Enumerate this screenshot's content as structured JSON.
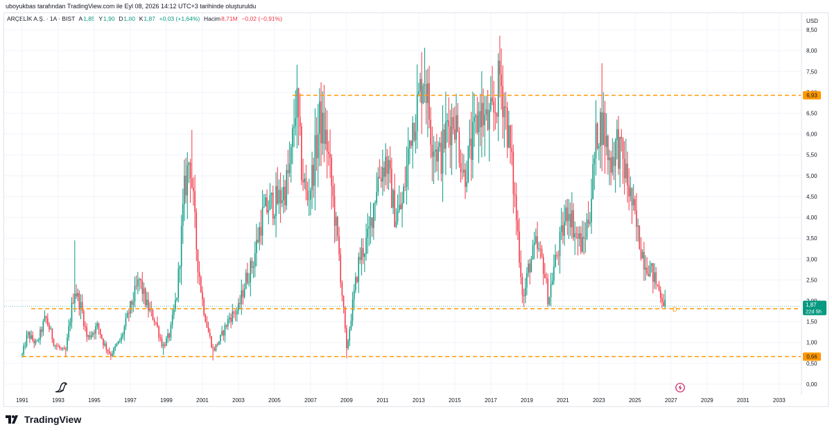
{
  "attribution": "uboyukbas tarafından TradingView.com ile Eyl 08, 2026 14:12 UTC+3 tarihinde oluşturuldu",
  "legend": {
    "symbol": "ARÇELİK A.Ş. · 1A · BIST",
    "open_label": "A",
    "open": "1,85",
    "high_label": "Y",
    "high": "1,90",
    "low_label": "D",
    "low": "1,80",
    "close_label": "K",
    "close": "1,87",
    "change": "+0,03 (+1,64%)",
    "volume_label": "Hacim",
    "volume": "8,71M",
    "volume_change": "−0,02 (−0,91%)"
  },
  "currency": "USD",
  "brand": "TradingView",
  "colors": {
    "up": "#089981",
    "down": "#f23645",
    "level": "#ff9800",
    "price_tag": "#089981",
    "grid": "#f0f3fa"
  },
  "chart_data": {
    "type": "candlestick",
    "symbol": "ARÇELİK A.Ş.",
    "interval": "1A",
    "exchange": "BIST",
    "currency": "USD",
    "x_range": [
      1990.0,
      2034.2
    ],
    "y_range": [
      -0.25,
      8.9
    ],
    "x_ticks": [
      "1991",
      "1993",
      "1995",
      "1997",
      "1999",
      "2001",
      "2003",
      "2005",
      "2007",
      "2009",
      "2011",
      "2013",
      "2015",
      "2017",
      "2019",
      "2021",
      "2023",
      "2025",
      "2027",
      "2029",
      "2031",
      "2033"
    ],
    "y_ticks": [
      "0,00",
      "0,50",
      "1,00",
      "1,50",
      "2,00",
      "2,50",
      "3,00",
      "3,50",
      "4,00",
      "4,50",
      "5,00",
      "5,50",
      "6,00",
      "6,50",
      "7,00",
      "7,50",
      "8,00",
      "8,50"
    ],
    "horizontal_levels": [
      {
        "value": 6.93,
        "label": "6,93"
      },
      {
        "value": 1.81,
        "label": "1,81"
      },
      {
        "value": 0.66,
        "label": "0,66"
      }
    ],
    "last_price": {
      "value": 1.87,
      "label": "1,87",
      "countdown": "22d 5h"
    },
    "marker_label": "D",
    "price_path": [
      [
        1991.0,
        0.7
      ],
      [
        1991.3,
        1.2
      ],
      [
        1991.8,
        0.95
      ],
      [
        1992.3,
        1.6
      ],
      [
        1992.8,
        0.95
      ],
      [
        1993.4,
        0.75
      ],
      [
        1993.9,
        2.3
      ],
      [
        1994.3,
        1.8
      ],
      [
        1994.6,
        1.1
      ],
      [
        1995.2,
        1.4
      ],
      [
        1995.5,
        1.0
      ],
      [
        1995.9,
        0.7
      ],
      [
        1996.5,
        1.1
      ],
      [
        1996.9,
        1.7
      ],
      [
        1997.5,
        2.5
      ],
      [
        1997.9,
        1.9
      ],
      [
        1998.4,
        1.5
      ],
      [
        1998.8,
        0.9
      ],
      [
        1999.2,
        1.2
      ],
      [
        1999.6,
        2.2
      ],
      [
        2000.0,
        4.6
      ],
      [
        2000.3,
        5.5
      ],
      [
        2000.7,
        3.1
      ],
      [
        2001.0,
        2.0
      ],
      [
        2001.3,
        1.3
      ],
      [
        2001.6,
        0.8
      ],
      [
        2002.0,
        1.1
      ],
      [
        2002.5,
        1.6
      ],
      [
        2003.0,
        1.8
      ],
      [
        2003.4,
        2.5
      ],
      [
        2003.8,
        2.9
      ],
      [
        2004.3,
        4.0
      ],
      [
        2004.7,
        4.3
      ],
      [
        2005.2,
        4.4
      ],
      [
        2005.6,
        4.7
      ],
      [
        2005.9,
        5.3
      ],
      [
        2006.2,
        6.9
      ],
      [
        2006.5,
        5.2
      ],
      [
        2006.8,
        4.4
      ],
      [
        2007.1,
        5.0
      ],
      [
        2007.5,
        6.3
      ],
      [
        2007.9,
        5.8
      ],
      [
        2008.3,
        4.2
      ],
      [
        2008.6,
        3.0
      ],
      [
        2009.0,
        0.8
      ],
      [
        2009.3,
        1.8
      ],
      [
        2009.7,
        3.0
      ],
      [
        2010.2,
        3.5
      ],
      [
        2010.7,
        4.9
      ],
      [
        2011.2,
        5.4
      ],
      [
        2011.7,
        4.0
      ],
      [
        2012.1,
        4.3
      ],
      [
        2012.6,
        6.2
      ],
      [
        2013.0,
        6.8
      ],
      [
        2013.3,
        7.6
      ],
      [
        2013.7,
        6.0
      ],
      [
        2014.2,
        5.4
      ],
      [
        2014.6,
        6.2
      ],
      [
        2015.0,
        6.4
      ],
      [
        2015.5,
        5.0
      ],
      [
        2015.9,
        5.6
      ],
      [
        2016.4,
        6.6
      ],
      [
        2016.8,
        6.2
      ],
      [
        2017.2,
        6.5
      ],
      [
        2017.5,
        7.4
      ],
      [
        2017.8,
        6.6
      ],
      [
        2018.1,
        5.5
      ],
      [
        2018.5,
        3.6
      ],
      [
        2018.8,
        2.0
      ],
      [
        2019.1,
        2.8
      ],
      [
        2019.5,
        3.3
      ],
      [
        2019.9,
        2.9
      ],
      [
        2020.2,
        2.0
      ],
      [
        2020.5,
        2.8
      ],
      [
        2020.9,
        3.5
      ],
      [
        2021.3,
        4.3
      ],
      [
        2021.7,
        3.6
      ],
      [
        2022.1,
        3.3
      ],
      [
        2022.5,
        4.2
      ],
      [
        2022.9,
        6.1
      ],
      [
        2023.2,
        6.3
      ],
      [
        2023.6,
        5.3
      ],
      [
        2024.0,
        5.8
      ],
      [
        2024.4,
        5.2
      ],
      [
        2024.8,
        4.4
      ],
      [
        2025.1,
        3.7
      ],
      [
        2025.5,
        3.0
      ],
      [
        2025.8,
        2.8
      ],
      [
        2026.1,
        2.5
      ],
      [
        2026.4,
        2.2
      ],
      [
        2026.7,
        1.87
      ]
    ],
    "extreme_highs": [
      {
        "x": 1993.9,
        "high": 3.45
      },
      {
        "x": 2000.4,
        "high": 6.1
      },
      {
        "x": 2006.2,
        "high": 7.05
      },
      {
        "x": 2007.5,
        "high": 7.1
      },
      {
        "x": 2013.35,
        "high": 8.07
      },
      {
        "x": 2017.6,
        "high": 7.85
      },
      {
        "x": 2023.2,
        "high": 7.7
      }
    ],
    "extreme_lows": [
      {
        "x": 1993.4,
        "low": 0.65
      },
      {
        "x": 1995.9,
        "low": 0.67
      },
      {
        "x": 1998.8,
        "low": 0.7
      },
      {
        "x": 2001.6,
        "low": 0.57
      },
      {
        "x": 2009.0,
        "low": 0.62
      },
      {
        "x": 2018.8,
        "low": 1.85
      },
      {
        "x": 2020.2,
        "low": 1.85
      }
    ]
  }
}
